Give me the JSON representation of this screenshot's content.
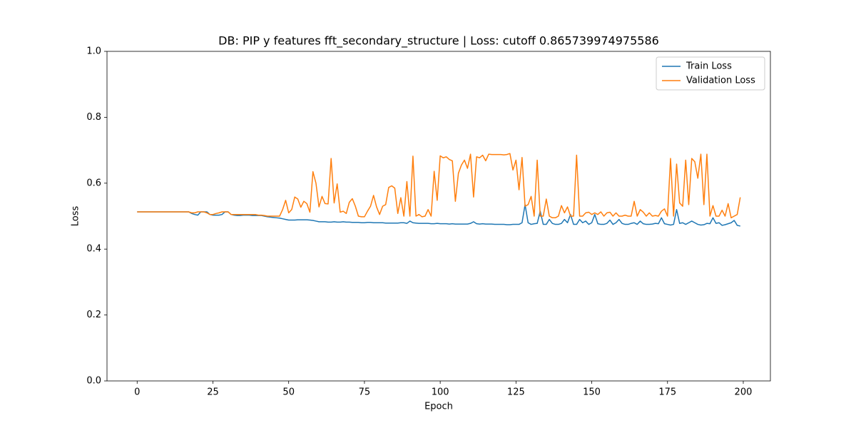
{
  "chart_data": {
    "type": "line",
    "title": "DB: PIP y features fft_secondary_structure | Loss: cutoff 0.865739974975586",
    "x_label": "Epoch",
    "y_label": "Loss",
    "x": [
      0,
      1,
      2,
      3,
      4,
      5,
      6,
      7,
      8,
      9,
      10,
      11,
      12,
      13,
      14,
      15,
      16,
      17,
      18,
      19,
      20,
      21,
      22,
      23,
      24,
      25,
      26,
      27,
      28,
      29,
      30,
      31,
      32,
      33,
      34,
      35,
      36,
      37,
      38,
      39,
      40,
      41,
      42,
      43,
      44,
      45,
      46,
      47,
      48,
      49,
      50,
      51,
      52,
      53,
      54,
      55,
      56,
      57,
      58,
      59,
      60,
      61,
      62,
      63,
      64,
      65,
      66,
      67,
      68,
      69,
      70,
      71,
      72,
      73,
      74,
      75,
      76,
      77,
      78,
      79,
      80,
      81,
      82,
      83,
      84,
      85,
      86,
      87,
      88,
      89,
      90,
      91,
      92,
      93,
      94,
      95,
      96,
      97,
      98,
      99,
      100,
      101,
      102,
      103,
      104,
      105,
      106,
      107,
      108,
      109,
      110,
      111,
      112,
      113,
      114,
      115,
      116,
      117,
      118,
      119,
      120,
      121,
      122,
      123,
      124,
      125,
      126,
      127,
      128,
      129,
      130,
      131,
      132,
      133,
      134,
      135,
      136,
      137,
      138,
      139,
      140,
      141,
      142,
      143,
      144,
      145,
      146,
      147,
      148,
      149,
      150,
      151,
      152,
      153,
      154,
      155,
      156,
      157,
      158,
      159,
      160,
      161,
      162,
      163,
      164,
      165,
      166,
      167,
      168,
      169,
      170,
      171,
      172,
      173,
      174,
      175,
      176,
      177,
      178,
      179,
      180,
      181,
      182,
      183,
      184,
      185,
      186,
      187,
      188,
      189,
      190,
      191,
      192,
      193,
      194,
      195,
      196,
      197,
      198,
      199
    ],
    "series": [
      {
        "name": "Train Loss",
        "color": "#1f77b4",
        "values": [
          0.513,
          0.513,
          0.513,
          0.513,
          0.513,
          0.513,
          0.513,
          0.513,
          0.513,
          0.513,
          0.513,
          0.513,
          0.513,
          0.513,
          0.513,
          0.513,
          0.513,
          0.513,
          0.508,
          0.505,
          0.503,
          0.513,
          0.513,
          0.513,
          0.505,
          0.503,
          0.503,
          0.503,
          0.505,
          0.513,
          0.513,
          0.505,
          0.503,
          0.502,
          0.502,
          0.503,
          0.503,
          0.503,
          0.502,
          0.502,
          0.502,
          0.502,
          0.5,
          0.498,
          0.497,
          0.496,
          0.495,
          0.494,
          0.492,
          0.49,
          0.488,
          0.488,
          0.488,
          0.489,
          0.489,
          0.489,
          0.489,
          0.488,
          0.487,
          0.485,
          0.483,
          0.483,
          0.483,
          0.482,
          0.482,
          0.483,
          0.482,
          0.482,
          0.483,
          0.482,
          0.482,
          0.481,
          0.481,
          0.481,
          0.48,
          0.48,
          0.481,
          0.481,
          0.48,
          0.48,
          0.48,
          0.48,
          0.479,
          0.479,
          0.479,
          0.479,
          0.479,
          0.48,
          0.48,
          0.478,
          0.485,
          0.48,
          0.479,
          0.478,
          0.478,
          0.478,
          0.478,
          0.477,
          0.477,
          0.478,
          0.477,
          0.477,
          0.477,
          0.476,
          0.477,
          0.476,
          0.476,
          0.476,
          0.476,
          0.476,
          0.478,
          0.483,
          0.477,
          0.476,
          0.477,
          0.476,
          0.476,
          0.476,
          0.475,
          0.475,
          0.475,
          0.475,
          0.474,
          0.474,
          0.475,
          0.475,
          0.475,
          0.48,
          0.535,
          0.48,
          0.475,
          0.477,
          0.478,
          0.515,
          0.475,
          0.475,
          0.49,
          0.478,
          0.475,
          0.475,
          0.478,
          0.49,
          0.48,
          0.505,
          0.475,
          0.475,
          0.49,
          0.48,
          0.485,
          0.475,
          0.48,
          0.505,
          0.477,
          0.475,
          0.475,
          0.478,
          0.488,
          0.475,
          0.48,
          0.49,
          0.478,
          0.475,
          0.475,
          0.478,
          0.48,
          0.475,
          0.485,
          0.477,
          0.475,
          0.475,
          0.476,
          0.478,
          0.477,
          0.495,
          0.477,
          0.475,
          0.473,
          0.475,
          0.52,
          0.478,
          0.48,
          0.475,
          0.48,
          0.485,
          0.48,
          0.475,
          0.473,
          0.474,
          0.478,
          0.477,
          0.495,
          0.478,
          0.48,
          0.472,
          0.474,
          0.477,
          0.48,
          0.487,
          0.472,
          0.47
        ]
      },
      {
        "name": "Validation Loss",
        "color": "#ff7f0e",
        "values": [
          0.513,
          0.513,
          0.513,
          0.513,
          0.513,
          0.513,
          0.513,
          0.513,
          0.513,
          0.513,
          0.513,
          0.513,
          0.513,
          0.513,
          0.513,
          0.513,
          0.513,
          0.513,
          0.51,
          0.51,
          0.513,
          0.513,
          0.513,
          0.51,
          0.505,
          0.505,
          0.508,
          0.51,
          0.513,
          0.513,
          0.513,
          0.505,
          0.505,
          0.505,
          0.505,
          0.505,
          0.505,
          0.505,
          0.505,
          0.505,
          0.503,
          0.503,
          0.502,
          0.5,
          0.5,
          0.5,
          0.5,
          0.5,
          0.52,
          0.548,
          0.51,
          0.52,
          0.558,
          0.552,
          0.527,
          0.545,
          0.538,
          0.512,
          0.635,
          0.6,
          0.528,
          0.56,
          0.538,
          0.537,
          0.675,
          0.54,
          0.598,
          0.512,
          0.515,
          0.508,
          0.542,
          0.553,
          0.53,
          0.5,
          0.498,
          0.498,
          0.515,
          0.53,
          0.563,
          0.528,
          0.505,
          0.53,
          0.535,
          0.587,
          0.592,
          0.585,
          0.508,
          0.556,
          0.5,
          0.605,
          0.5,
          0.682,
          0.5,
          0.505,
          0.498,
          0.5,
          0.52,
          0.5,
          0.636,
          0.548,
          0.683,
          0.677,
          0.68,
          0.672,
          0.668,
          0.545,
          0.63,
          0.655,
          0.67,
          0.645,
          0.688,
          0.558,
          0.68,
          0.677,
          0.685,
          0.668,
          0.688,
          0.687,
          0.687,
          0.687,
          0.687,
          0.686,
          0.687,
          0.69,
          0.64,
          0.67,
          0.58,
          0.678,
          0.53,
          0.535,
          0.56,
          0.5,
          0.67,
          0.5,
          0.5,
          0.552,
          0.5,
          0.495,
          0.495,
          0.5,
          0.532,
          0.51,
          0.528,
          0.5,
          0.5,
          0.685,
          0.5,
          0.5,
          0.51,
          0.512,
          0.505,
          0.51,
          0.505,
          0.513,
          0.5,
          0.51,
          0.512,
          0.5,
          0.51,
          0.5,
          0.5,
          0.503,
          0.5,
          0.5,
          0.545,
          0.5,
          0.52,
          0.512,
          0.5,
          0.51,
          0.5,
          0.502,
          0.5,
          0.515,
          0.522,
          0.5,
          0.675,
          0.5,
          0.658,
          0.54,
          0.53,
          0.67,
          0.535,
          0.675,
          0.665,
          0.615,
          0.688,
          0.535,
          0.688,
          0.5,
          0.532,
          0.5,
          0.5,
          0.518,
          0.5,
          0.538,
          0.495,
          0.5,
          0.505,
          0.557
        ]
      }
    ],
    "xlim": [
      -9.95,
      208.95
    ],
    "xticks": [
      0,
      25,
      50,
      75,
      100,
      125,
      150,
      175,
      200
    ],
    "ylim": [
      0,
      1
    ],
    "yticks": [
      {
        "value": 0,
        "label": "0.0"
      },
      0.2,
      0.4,
      0.6,
      0.8,
      {
        "value": 1,
        "label": "1.0"
      }
    ],
    "grid": false,
    "legend": "upper right"
  }
}
